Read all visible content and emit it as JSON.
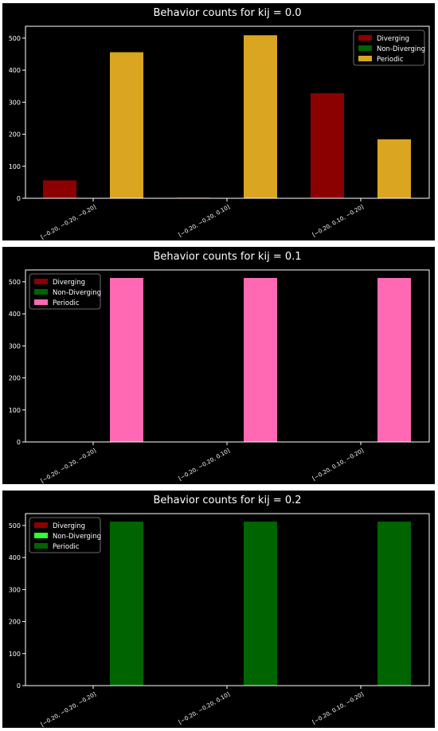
{
  "chart_data": [
    {
      "type": "bar",
      "title": "Behavior counts for kij = 0.0",
      "categories": [
        "[−0.20, −0.20, −0.20]",
        "[−0.20, −0.20, 0.10]",
        "[−0.20, 0.10, −0.20]"
      ],
      "series": [
        {
          "name": "Diverging",
          "values": [
            56,
            3,
            328
          ],
          "color": "#8b0000"
        },
        {
          "name": "Non-Diverging",
          "values": [
            0,
            0,
            0
          ],
          "color": "#006400"
        },
        {
          "name": "Periodic",
          "values": [
            456,
            509,
            184
          ],
          "color": "#daa520"
        }
      ],
      "yticks": [
        "0",
        "100",
        "200",
        "300",
        "400",
        "500"
      ],
      "ylim": [
        0,
        537
      ],
      "legend": "top-right"
    },
    {
      "type": "bar",
      "title": "Behavior counts for kij = 0.1",
      "categories": [
        "[−0.20, −0.20, −0.20]",
        "[−0.20, −0.20, 0.10]",
        "[−0.20, 0.10, −0.20]"
      ],
      "series": [
        {
          "name": "Diverging",
          "values": [
            0,
            0,
            0
          ],
          "color": "#8b0000"
        },
        {
          "name": "Non-Diverging",
          "values": [
            0,
            0,
            0
          ],
          "color": "#006400"
        },
        {
          "name": "Periodic",
          "values": [
            512,
            512,
            512
          ],
          "color": "#ff69b4"
        }
      ],
      "yticks": [
        "0",
        "100",
        "200",
        "300",
        "400",
        "500"
      ],
      "ylim": [
        0,
        537
      ],
      "legend": "top-left"
    },
    {
      "type": "bar",
      "title": "Behavior counts for kij = 0.2",
      "categories": [
        "[−0.20, −0.20, −0.20]",
        "[−0.20, −0.20, 0.10]",
        "[−0.20, 0.10, −0.20]"
      ],
      "series": [
        {
          "name": "Diverging",
          "values": [
            0,
            0,
            0
          ],
          "color": "#8b0000"
        },
        {
          "name": "Non-Diverging",
          "values": [
            0,
            0,
            0
          ],
          "color": "#32ff32"
        },
        {
          "name": "Periodic",
          "values": [
            512,
            512,
            512
          ],
          "color": "#006400"
        }
      ],
      "yticks": [
        "0",
        "100",
        "200",
        "300",
        "400",
        "500"
      ],
      "ylim": [
        0,
        537
      ],
      "legend": "top-left"
    }
  ]
}
